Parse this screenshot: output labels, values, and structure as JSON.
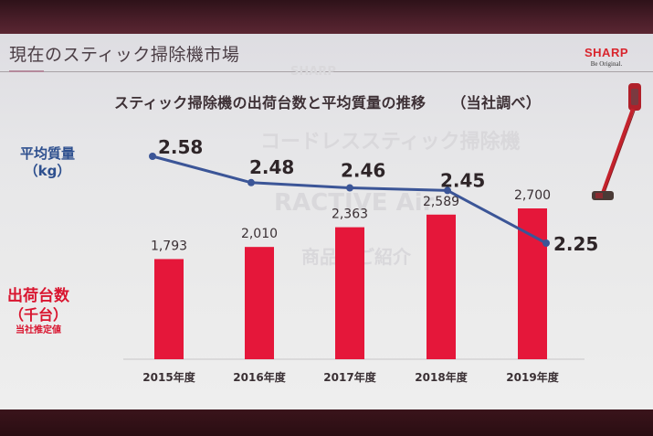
{
  "slide": {
    "title": "現在のスティック掃除機市場",
    "logo": {
      "brand": "SHARP",
      "tagline": "Be Original."
    },
    "watermark": {
      "logo": "SHARP",
      "line1": "コードレススティック掃除機",
      "line2": "RACTIVE Air",
      "line3": "商品のご紹介"
    },
    "background_color": "#e6e6e8"
  },
  "chart_data": {
    "type": "bar+line",
    "title": "スティック掃除機の出荷台数と平均質量の推移",
    "subtitle": "（当社調べ）",
    "categories": [
      "2015年度",
      "2016年度",
      "2017年度",
      "2018年度",
      "2019年度"
    ],
    "series": [
      {
        "name": "出荷台数（千台）",
        "type": "bar",
        "note": "当社推定値",
        "values": [
          1793,
          2010,
          2363,
          2589,
          2700
        ],
        "labels": [
          "1,793",
          "2,010",
          "2,363",
          "2,589",
          "2,700"
        ],
        "color": "#e5173a"
      },
      {
        "name": "平均質量（kg）",
        "type": "line",
        "values": [
          2.58,
          2.48,
          2.46,
          2.45,
          2.25
        ],
        "labels": [
          "2.58",
          "2.48",
          "2.46",
          "2.45",
          "2.25"
        ],
        "color": "#3b5597"
      }
    ],
    "y1_label": {
      "line1": "平均質量",
      "line2": "（kg）"
    },
    "y2_label": {
      "line1": "出荷台数",
      "line2": "（千台）",
      "line3": "当社推定値"
    },
    "grid": false,
    "legend": "none"
  }
}
